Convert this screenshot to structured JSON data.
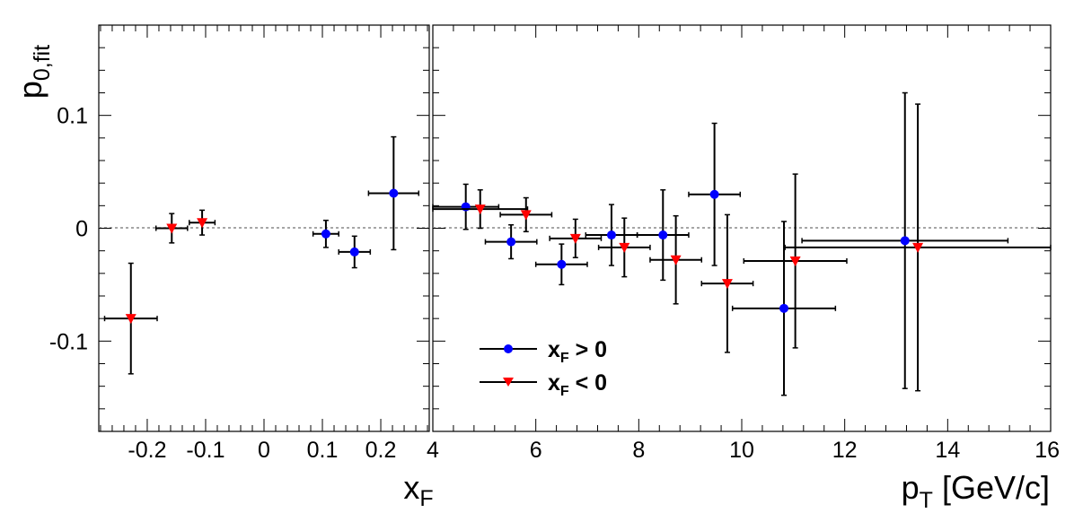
{
  "chart_data": [
    {
      "type": "scatter",
      "panel": "left",
      "xlabel": "x",
      "xlabel_sub": "F",
      "ylabel": "p",
      "ylabel_sub": "0,fit",
      "xlim": [
        -0.283,
        0.283
      ],
      "ylim": [
        -0.18,
        0.18
      ],
      "xticks": [
        -0.2,
        -0.1,
        0,
        0.1,
        0.2
      ],
      "xtick_labels": [
        "-0.2",
        "-0.1",
        "0",
        "0.1",
        "0.2"
      ],
      "yticks": [
        -0.1,
        0,
        0.1
      ],
      "ytick_labels": [
        "-0.1",
        "0",
        "0.1"
      ],
      "reference_line_y": 0,
      "series": [
        {
          "name": "x_F > 0",
          "color": "#0000ff",
          "marker": "circle",
          "points": [
            {
              "x": 0.106,
              "y": -0.005,
              "xerr": 0.022,
              "yerr": 0.012
            },
            {
              "x": 0.155,
              "y": -0.021,
              "xerr": 0.027,
              "yerr": 0.014
            },
            {
              "x": 0.222,
              "y": 0.031,
              "xerr": 0.043,
              "yerr": 0.05
            }
          ]
        },
        {
          "name": "x_F < 0",
          "color": "#ff0000",
          "marker": "triangle-down",
          "points": [
            {
              "x": -0.228,
              "y": -0.08,
              "xerr": 0.045,
              "yerr": 0.049
            },
            {
              "x": -0.158,
              "y": 0.0,
              "xerr": 0.027,
              "yerr": 0.013
            },
            {
              "x": -0.106,
              "y": 0.005,
              "xerr": 0.022,
              "yerr": 0.011
            }
          ]
        }
      ]
    },
    {
      "type": "scatter",
      "panel": "right",
      "xlabel": "p",
      "xlabel_sub": "T",
      "xlabel_rest": " [GeV/c]",
      "xlim": [
        4,
        16
      ],
      "ylim": [
        -0.18,
        0.18
      ],
      "xticks": [
        4,
        6,
        8,
        10,
        12,
        14,
        16
      ],
      "xtick_labels": [
        "4",
        "6",
        "8",
        "10",
        "12",
        "14",
        "16"
      ],
      "reference_line_y": 0,
      "legend": {
        "position": "bottom-left",
        "entries": [
          {
            "label_main": "x",
            "label_sub": "F",
            "label_rest": " > 0",
            "color": "#0000ff",
            "marker": "circle"
          },
          {
            "label_main": "x",
            "label_sub": "F",
            "label_rest": " < 0",
            "color": "#ff0000",
            "marker": "triangle-down"
          }
        ]
      },
      "series": [
        {
          "name": "x_F > 0",
          "color": "#0000ff",
          "marker": "circle",
          "points": [
            {
              "x": 4.64,
              "y": 0.019,
              "xerr": 0.64,
              "yerr": 0.02
            },
            {
              "x": 5.52,
              "y": -0.012,
              "xerr": 0.5,
              "yerr": 0.015
            },
            {
              "x": 6.5,
              "y": -0.032,
              "xerr": 0.5,
              "yerr": 0.018
            },
            {
              "x": 7.47,
              "y": -0.006,
              "xerr": 0.5,
              "yerr": 0.027
            },
            {
              "x": 8.47,
              "y": -0.006,
              "xerr": 0.5,
              "yerr": 0.04
            },
            {
              "x": 9.47,
              "y": 0.03,
              "xerr": 0.5,
              "yerr": 0.063
            },
            {
              "x": 10.82,
              "y": -0.071,
              "xerr": 1.0,
              "yerr": 0.077
            },
            {
              "x": 13.17,
              "y": -0.011,
              "xerr": 2.0,
              "yerr": 0.131
            }
          ]
        },
        {
          "name": "x_F < 0",
          "color": "#ff0000",
          "marker": "triangle-down",
          "points": [
            {
              "x": 4.92,
              "y": 0.017,
              "xerr": 0.92,
              "yerr": 0.017
            },
            {
              "x": 5.81,
              "y": 0.012,
              "xerr": 0.5,
              "yerr": 0.015
            },
            {
              "x": 6.77,
              "y": -0.009,
              "xerr": 0.5,
              "yerr": 0.017
            },
            {
              "x": 7.72,
              "y": -0.017,
              "xerr": 0.5,
              "yerr": 0.026
            },
            {
              "x": 8.72,
              "y": -0.028,
              "xerr": 0.5,
              "yerr": 0.039
            },
            {
              "x": 9.72,
              "y": -0.049,
              "xerr": 0.5,
              "yerr": 0.061
            },
            {
              "x": 11.04,
              "y": -0.029,
              "xerr": 1.0,
              "yerr": 0.077
            },
            {
              "x": 13.42,
              "y": -0.017,
              "xerr": 2.58,
              "yerr": 0.127
            }
          ]
        }
      ]
    }
  ]
}
